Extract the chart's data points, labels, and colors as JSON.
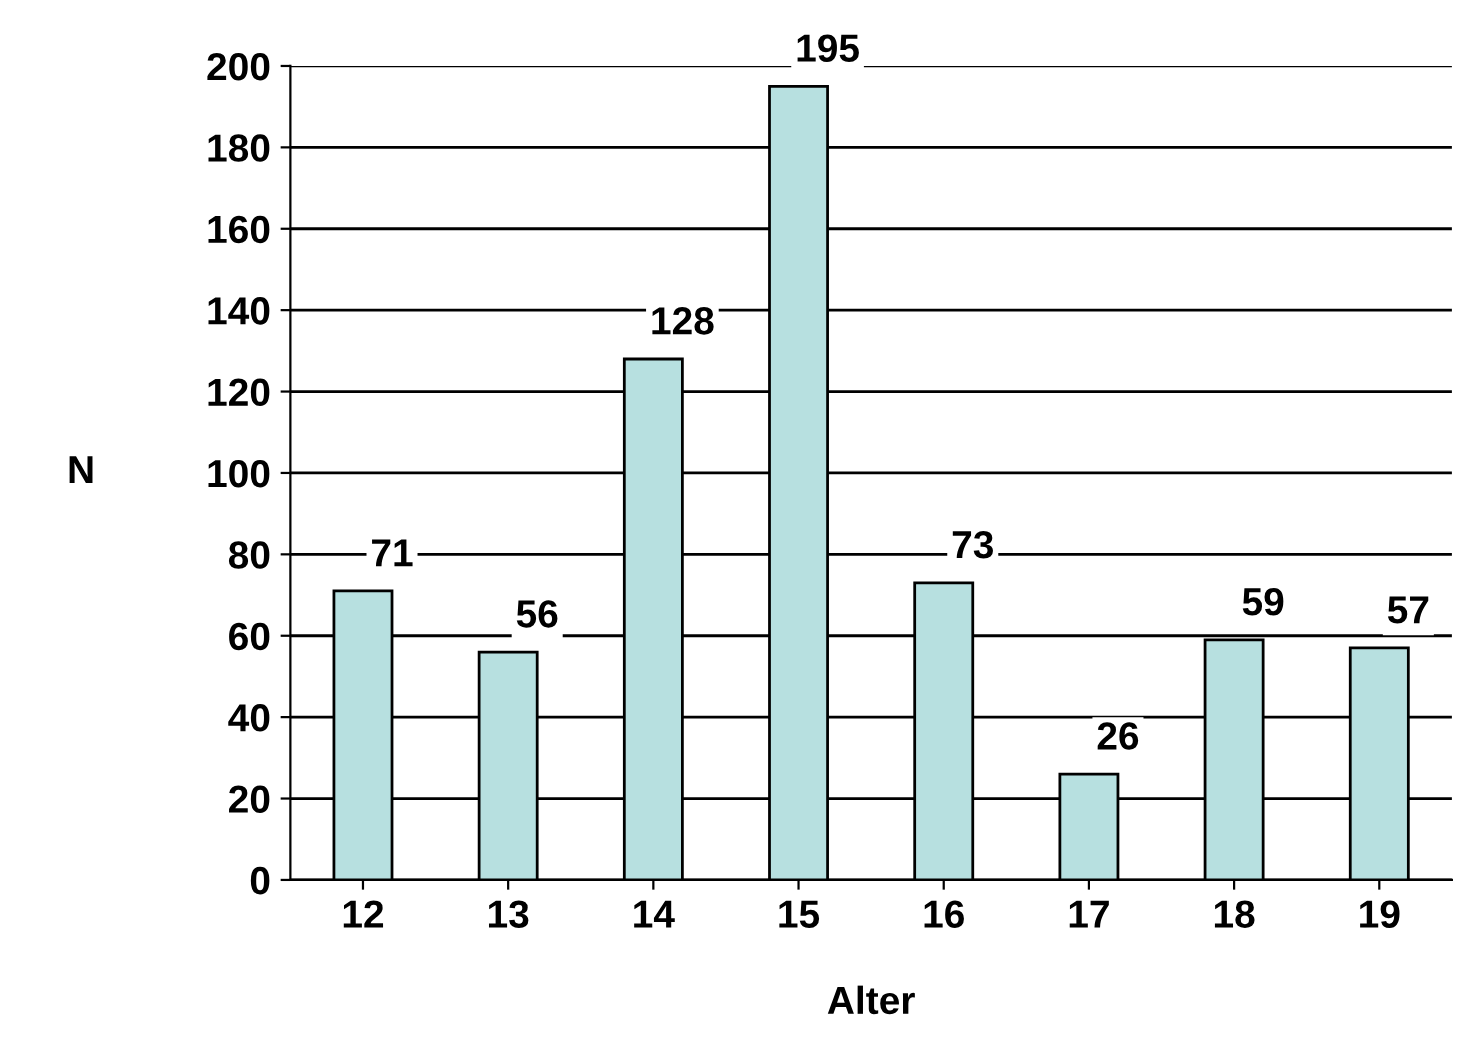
{
  "chart_data": {
    "type": "bar",
    "xlabel": "Alter",
    "ylabel": "N",
    "categories": [
      "12",
      "13",
      "14",
      "15",
      "16",
      "17",
      "18",
      "19"
    ],
    "values": [
      71,
      56,
      128,
      195,
      73,
      26,
      59,
      57
    ],
    "color": "#b7e0e0",
    "ylim": [
      0,
      200
    ],
    "yticks": [
      0,
      20,
      40,
      60,
      80,
      100,
      120,
      140,
      160,
      180,
      200
    ],
    "grid": "y",
    "data_labels": true
  }
}
